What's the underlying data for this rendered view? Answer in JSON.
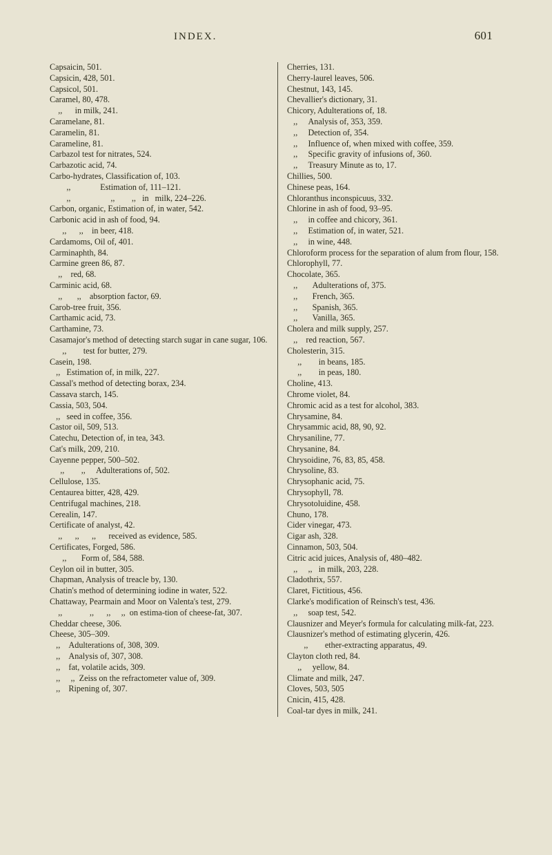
{
  "header": {
    "title": "INDEX.",
    "page": "601"
  },
  "left": [
    "Capsaicin, 501.",
    "Capsicin, 428, 501.",
    "Capsicol, 501.",
    "Caramel, 80, 478.",
    "&nbsp;&nbsp;&nbsp;&nbsp;,,&nbsp;&nbsp;&nbsp;&nbsp;&nbsp;&nbsp;in milk, 241.",
    "Caramelane, 81.",
    "Caramelin, 81.",
    "Carameline, 81.",
    "Carbazol test for nitrates, 524.",
    "Carbazotic acid, 74.",
    "Carbo-hydrates, Classification of, 103.",
    "&nbsp;&nbsp;&nbsp;&nbsp;&nbsp;&nbsp;&nbsp;&nbsp;,,&nbsp;&nbsp;&nbsp;&nbsp;&nbsp;&nbsp;&nbsp;&nbsp;&nbsp;&nbsp;&nbsp;&nbsp;&nbsp;&nbsp;Estimation of, 111–121.",
    "&nbsp;&nbsp;&nbsp;&nbsp;&nbsp;&nbsp;&nbsp;&nbsp;,,&nbsp;&nbsp;&nbsp;&nbsp;&nbsp;&nbsp;&nbsp;&nbsp;&nbsp;&nbsp;&nbsp;&nbsp;&nbsp;&nbsp;&nbsp;&nbsp;&nbsp;&nbsp;&nbsp;,,&nbsp;&nbsp;&nbsp;&nbsp;&nbsp;&nbsp;&nbsp;&nbsp;,,&nbsp;&nbsp;&nbsp;in&nbsp;&nbsp;&nbsp;milk, 224–226.",
    "Carbon, organic, Estimation of, in water, 542.",
    "Carbonic acid in ash of food, 94.",
    "&nbsp;&nbsp;&nbsp;&nbsp;&nbsp;&nbsp;,,&nbsp;&nbsp;&nbsp;&nbsp;&nbsp;&nbsp;,,&nbsp;&nbsp;&nbsp;&nbsp;in beer, 418.",
    "Cardamoms, Oil of, 401.",
    "Carminaphth, 84.",
    "Carmine green 86, 87.",
    "&nbsp;&nbsp;&nbsp;&nbsp;,,&nbsp;&nbsp;&nbsp;&nbsp;red, 68.",
    "Carminic acid, 68.",
    "&nbsp;&nbsp;&nbsp;&nbsp;,,&nbsp;&nbsp;&nbsp;&nbsp;&nbsp;&nbsp;&nbsp;,,&nbsp;&nbsp;&nbsp;&nbsp;absorption factor, 69.",
    "Carob-tree fruit, 356.",
    "Carthamic acid, 73.",
    "Carthamine, 73.",
    "Casamajor's method of detecting starch sugar in cane sugar, 106.",
    "&nbsp;&nbsp;&nbsp;&nbsp;&nbsp;&nbsp;,,&nbsp;&nbsp;&nbsp;&nbsp;&nbsp;&nbsp;&nbsp;&nbsp;test for butter, 279.",
    "Casein, 198.",
    "&nbsp;&nbsp;&nbsp;,,&nbsp;&nbsp;&nbsp;Estimation of, in milk, 227.",
    "Cassal's method of detecting borax, 234.",
    "Cassava starch, 145.",
    "Cassia, 503, 504.",
    "&nbsp;&nbsp;&nbsp;,,&nbsp;&nbsp;&nbsp;seed in coffee, 356.",
    "Castor oil, 509, 513.",
    "Catechu, Detection of, in tea, 343.",
    "Cat's milk, 209, 210.",
    "Cayenne pepper, 500–502.",
    "&nbsp;&nbsp;&nbsp;&nbsp;&nbsp;,,&nbsp;&nbsp;&nbsp;&nbsp;&nbsp;&nbsp;&nbsp;&nbsp;,,&nbsp;&nbsp;&nbsp;&nbsp;&nbsp;Adulterations of, 502.",
    "Cellulose, 135.",
    "Centaurea bitter, 428, 429.",
    "Centrifugal machines, 218.",
    "Cerealin, 147.",
    "Certificate of analyst, 42.",
    "&nbsp;&nbsp;&nbsp;&nbsp;,,&nbsp;&nbsp;&nbsp;&nbsp;&nbsp;&nbsp;,,&nbsp;&nbsp;&nbsp;&nbsp;&nbsp;&nbsp;,,&nbsp;&nbsp;&nbsp;&nbsp;&nbsp;&nbsp;received as evidence, 585.",
    "Certificates, Forged, 586.",
    "&nbsp;&nbsp;&nbsp;&nbsp;&nbsp;&nbsp;,,&nbsp;&nbsp;&nbsp;&nbsp;&nbsp;&nbsp;&nbsp;Form of, 584, 588.",
    "Ceylon oil in butter, 305.",
    "Chapman, Analysis of treacle by, 130.",
    "Chatin's method of determining iodine in water, 522.",
    "Chattaway, Pearmain and Moor on Valenta's test, 279.",
    "&nbsp;&nbsp;&nbsp;&nbsp;,,&nbsp;&nbsp;&nbsp;&nbsp;&nbsp;&nbsp;&nbsp;&nbsp;&nbsp;&nbsp;&nbsp;&nbsp;&nbsp;,,&nbsp;&nbsp;&nbsp;&nbsp;&nbsp;&nbsp;,,&nbsp;&nbsp;&nbsp;&nbsp;&nbsp;,,&nbsp;&nbsp;on estima-tion of cheese-fat, 307.",
    "Cheddar cheese, 306.",
    "Cheese, 305–309.",
    "&nbsp;&nbsp;&nbsp;,,&nbsp;&nbsp;&nbsp;&nbsp;Adulterations of, 308, 309.",
    "&nbsp;&nbsp;&nbsp;,,&nbsp;&nbsp;&nbsp;&nbsp;Analysis of, 307, 308.",
    "&nbsp;&nbsp;&nbsp;,,&nbsp;&nbsp;&nbsp;&nbsp;fat, volatile acids, 309.",
    "&nbsp;&nbsp;&nbsp;,,&nbsp;&nbsp;&nbsp;&nbsp;&nbsp;,,&nbsp;&nbsp;Zeiss on the refractometer value of, 309.",
    "&nbsp;&nbsp;&nbsp;,,&nbsp;&nbsp;&nbsp;&nbsp;Ripening of, 307."
  ],
  "right": [
    "Cherries, 131.",
    "Cherry-laurel leaves, 506.",
    "Chestnut, 143, 145.",
    "Chevallier's dictionary, 31.",
    "Chicory, Adulterations of, 18.",
    "&nbsp;&nbsp;&nbsp;,,&nbsp;&nbsp;&nbsp;&nbsp;&nbsp;Analysis of, 353, 359.",
    "&nbsp;&nbsp;&nbsp;,,&nbsp;&nbsp;&nbsp;&nbsp;&nbsp;Detection of, 354.",
    "&nbsp;&nbsp;&nbsp;,,&nbsp;&nbsp;&nbsp;&nbsp;&nbsp;Influence of, when mixed with coffee, 359.",
    "&nbsp;&nbsp;&nbsp;,,&nbsp;&nbsp;&nbsp;&nbsp;&nbsp;Specific gravity of infusions of, 360.",
    "&nbsp;&nbsp;&nbsp;,,&nbsp;&nbsp;&nbsp;&nbsp;&nbsp;Treasury Minute as to, 17.",
    "Chillies, 500.",
    "Chinese peas, 164.",
    "Chloranthus inconspicuus, 332.",
    "Chlorine in ash of food, 93–95.",
    "&nbsp;&nbsp;&nbsp;,,&nbsp;&nbsp;&nbsp;&nbsp;&nbsp;in coffee and chicory, 361.",
    "&nbsp;&nbsp;&nbsp;,,&nbsp;&nbsp;&nbsp;&nbsp;&nbsp;Estimation of, in water, 521.",
    "&nbsp;&nbsp;&nbsp;,,&nbsp;&nbsp;&nbsp;&nbsp;&nbsp;in wine, 448.",
    "Chloroform process for the separation of alum from flour, 158.",
    "Chlorophyll, 77.",
    "Chocolate, 365.",
    "&nbsp;&nbsp;&nbsp;,,&nbsp;&nbsp;&nbsp;&nbsp;&nbsp;&nbsp;&nbsp;Adulterations of, 375.",
    "&nbsp;&nbsp;&nbsp;,,&nbsp;&nbsp;&nbsp;&nbsp;&nbsp;&nbsp;&nbsp;French, 365.",
    "&nbsp;&nbsp;&nbsp;,,&nbsp;&nbsp;&nbsp;&nbsp;&nbsp;&nbsp;&nbsp;Spanish, 365.",
    "&nbsp;&nbsp;&nbsp;,,&nbsp;&nbsp;&nbsp;&nbsp;&nbsp;&nbsp;&nbsp;Vanilla, 365.",
    "Cholera and milk supply, 257.",
    "&nbsp;&nbsp;&nbsp;,,&nbsp;&nbsp;&nbsp;&nbsp;red reaction, 567.",
    "Cholesterin, 315.",
    "&nbsp;&nbsp;&nbsp;&nbsp;&nbsp;,,&nbsp;&nbsp;&nbsp;&nbsp;&nbsp;&nbsp;&nbsp;&nbsp;in beans, 185.",
    "&nbsp;&nbsp;&nbsp;&nbsp;&nbsp;,,&nbsp;&nbsp;&nbsp;&nbsp;&nbsp;&nbsp;&nbsp;&nbsp;in peas, 180.",
    "Choline, 413.",
    "Chrome violet, 84.",
    "Chromic acid as a test for alcohol, 383.",
    "Chrysamine, 84.",
    "Chrysammic acid, 88, 90, 92.",
    "Chrysaniline, 77.",
    "Chrysanine, 84.",
    "Chrysoidine, 76, 83, 85, 458.",
    "Chrysoline, 83.",
    "Chrysophanic acid, 75.",
    "Chrysophyll, 78.",
    "Chrysotoluidine, 458.",
    "Chuno, 178.",
    "Cider vinegar, 473.",
    "Cigar ash, 328.",
    "Cinnamon, 503, 504.",
    "Citric acid juices, Analysis of, 480–482.",
    "&nbsp;&nbsp;&nbsp;,,&nbsp;&nbsp;&nbsp;&nbsp;&nbsp;,,&nbsp;&nbsp;&nbsp;in milk, 203, 228.",
    "Cladothrix, 557.",
    "Claret, Fictitious, 456.",
    "Clarke's modification of Reinsch's test, 436.",
    "&nbsp;&nbsp;&nbsp;,,&nbsp;&nbsp;&nbsp;&nbsp;&nbsp;soap test, 542.",
    "Clausnizer and Meyer's formula for calculating milk-fat, 223.",
    "Clausnizer's method of estimating glycerin, 426.",
    "&nbsp;&nbsp;&nbsp;&nbsp;&nbsp;&nbsp;&nbsp;&nbsp;,,&nbsp;&nbsp;&nbsp;&nbsp;&nbsp;&nbsp;&nbsp;&nbsp;ether-extracting apparatus, 49.",
    "Clayton cloth red, 84.",
    "&nbsp;&nbsp;&nbsp;&nbsp;&nbsp;,,&nbsp;&nbsp;&nbsp;&nbsp;&nbsp;yellow, 84.",
    "Climate and milk, 247.",
    "Cloves, 503, 505",
    "Cnicin, 415, 428.",
    "Coal-tar dyes in milk, 241."
  ]
}
